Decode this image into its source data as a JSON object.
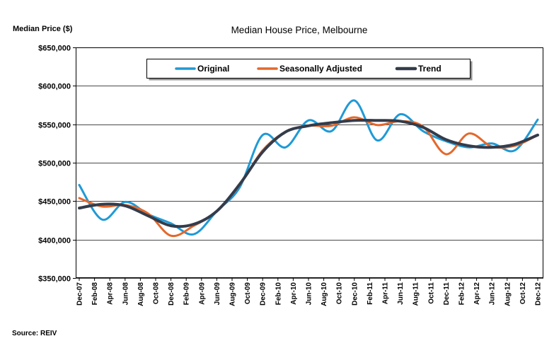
{
  "chart_data": {
    "type": "line",
    "title": "Median House Price, Melbourne",
    "ylabel": "Median Price ($)",
    "source": "Source: REIV",
    "ylim": [
      350000,
      650000
    ],
    "yticks": [
      350000,
      400000,
      450000,
      500000,
      550000,
      600000,
      650000
    ],
    "ytick_labels": [
      "$350,000",
      "$400,000",
      "$450,000",
      "$500,000",
      "$550,000",
      "$600,000",
      "$650,000"
    ],
    "categories": [
      "Dec-07",
      "Feb-08",
      "Apr-08",
      "Jun-08",
      "Aug-08",
      "Oct-08",
      "Dec-08",
      "Feb-09",
      "Apr-09",
      "Jun-09",
      "Aug-09",
      "Oct-09",
      "Dec-09",
      "Feb-10",
      "Apr-10",
      "Jun-10",
      "Aug-10",
      "Oct-10",
      "Dec-10",
      "Feb-11",
      "Apr-11",
      "Jun-11",
      "Aug-11",
      "Oct-11",
      "Dec-11",
      "Feb-12",
      "Apr-12",
      "Jun-12",
      "Aug-12",
      "Oct-12",
      "Dec-12"
    ],
    "x": [
      "Dec-07",
      "Mar-08",
      "Jun-08",
      "Sep-08",
      "Dec-08",
      "Mar-09",
      "Jun-09",
      "Sep-09",
      "Dec-09",
      "Mar-10",
      "Jun-10",
      "Sep-10",
      "Dec-10",
      "Mar-11",
      "Jun-11",
      "Sep-11",
      "Dec-11",
      "Mar-12",
      "Jun-12",
      "Sep-12",
      "Dec-12"
    ],
    "series": [
      {
        "name": "Original",
        "color": "#1f9ad6",
        "values": [
          471000,
          426000,
          449000,
          433000,
          421000,
          407000,
          437000,
          468000,
          536000,
          520000,
          555000,
          541000,
          581000,
          529000,
          563000,
          541000,
          528000,
          520000,
          525000,
          516000,
          556000
        ]
      },
      {
        "name": "Seasonally Adjusted",
        "color": "#e4682c",
        "values": [
          454000,
          443000,
          445000,
          434000,
          405000,
          418000,
          437000,
          471000,
          516000,
          540000,
          548000,
          548000,
          559000,
          549000,
          554000,
          547000,
          511000,
          538000,
          521000,
          522000,
          536000
        ]
      },
      {
        "name": "Trend",
        "color": "#343c4b",
        "values": [
          441000,
          446000,
          444000,
          431000,
          418000,
          420000,
          437000,
          472000,
          514000,
          540000,
          548000,
          552000,
          555000,
          555000,
          554000,
          546000,
          530000,
          522000,
          520000,
          524000,
          536000
        ]
      }
    ],
    "grid": true,
    "legend_position": "top"
  }
}
